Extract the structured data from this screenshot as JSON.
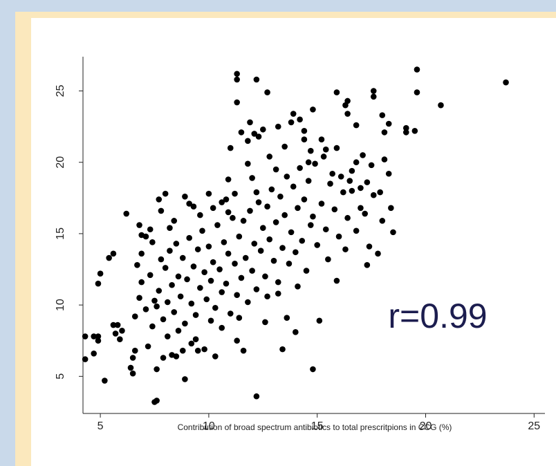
{
  "colors": {
    "background": "#c9d9ea",
    "frame": "#fbe8bd",
    "panel": "#ffffff",
    "points": "#000000",
    "annotation": "#1c1d4f"
  },
  "chart_data": {
    "type": "scatter",
    "title": "",
    "xlabel": "Contribution of broad spectrum antibiotics to total prescritpions in CCG (%)",
    "ylabel": "",
    "xlim": [
      4.2,
      25.5
    ],
    "ylim": [
      2.4,
      27.4
    ],
    "x_ticks": [
      5,
      10,
      15,
      20,
      25
    ],
    "y_ticks": [
      5,
      10,
      15,
      20,
      25
    ],
    "x_tick_labels": [
      "5",
      "10",
      "15",
      "20",
      "25"
    ],
    "y_tick_labels": [
      "5",
      "10",
      "15",
      "20",
      "25"
    ],
    "grid": false,
    "annotation": "r=0.99",
    "points": [
      [
        4.3,
        7.8
      ],
      [
        4.3,
        6.2
      ],
      [
        4.7,
        7.8
      ],
      [
        4.7,
        6.6
      ],
      [
        4.9,
        7.5
      ],
      [
        4.9,
        7.8
      ],
      [
        4.9,
        11.5
      ],
      [
        5.0,
        12.2
      ],
      [
        5.2,
        4.7
      ],
      [
        5.4,
        13.3
      ],
      [
        5.6,
        13.6
      ],
      [
        5.6,
        8.6
      ],
      [
        5.8,
        8.6
      ],
      [
        5.7,
        8.0
      ],
      [
        5.9,
        7.6
      ],
      [
        6.0,
        8.2
      ],
      [
        6.2,
        16.4
      ],
      [
        6.4,
        5.6
      ],
      [
        6.5,
        5.2
      ],
      [
        6.5,
        6.3
      ],
      [
        6.6,
        6.8
      ],
      [
        6.8,
        15.6
      ],
      [
        6.9,
        13.6
      ],
      [
        7.1,
        14.8
      ],
      [
        7.3,
        15.3
      ],
      [
        7.4,
        14.4
      ],
      [
        7.5,
        3.2
      ],
      [
        7.6,
        3.3
      ],
      [
        7.6,
        5.5
      ],
      [
        7.7,
        17.4
      ],
      [
        7.8,
        16.6
      ],
      [
        7.9,
        6.3
      ],
      [
        8.0,
        17.8
      ],
      [
        8.2,
        15.4
      ],
      [
        8.3,
        6.5
      ],
      [
        8.5,
        6.4
      ],
      [
        8.8,
        6.8
      ],
      [
        8.9,
        17.6
      ],
      [
        8.9,
        4.8
      ],
      [
        9.1,
        17.1
      ],
      [
        9.3,
        16.9
      ],
      [
        9.5,
        6.8
      ],
      [
        9.8,
        6.9
      ],
      [
        10.0,
        17.8
      ],
      [
        10.2,
        16.8
      ],
      [
        10.3,
        6.4
      ],
      [
        10.6,
        17.2
      ],
      [
        10.9,
        16.5
      ],
      [
        11.0,
        21.0
      ],
      [
        11.2,
        17.8
      ],
      [
        11.3,
        26.2
      ],
      [
        11.3,
        24.2
      ],
      [
        11.3,
        25.8
      ],
      [
        11.5,
        22.1
      ],
      [
        11.6,
        6.8
      ],
      [
        11.8,
        21.5
      ],
      [
        11.9,
        22.8
      ],
      [
        12.1,
        22.0
      ],
      [
        12.2,
        25.8
      ],
      [
        12.2,
        3.6
      ],
      [
        12.3,
        21.8
      ],
      [
        12.5,
        22.3
      ],
      [
        12.7,
        24.9
      ],
      [
        13.2,
        22.5
      ],
      [
        13.4,
        6.9
      ],
      [
        13.6,
        9.1
      ],
      [
        13.8,
        22.8
      ],
      [
        13.9,
        23.4
      ],
      [
        14.0,
        8.1
      ],
      [
        14.2,
        23.0
      ],
      [
        14.4,
        22.2
      ],
      [
        14.6,
        20.0
      ],
      [
        14.8,
        5.5
      ],
      [
        14.8,
        23.7
      ],
      [
        15.1,
        8.9
      ],
      [
        15.2,
        21.6
      ],
      [
        15.4,
        20.9
      ],
      [
        15.9,
        11.7
      ],
      [
        15.9,
        24.9
      ],
      [
        16.1,
        19.0
      ],
      [
        16.3,
        24.0
      ],
      [
        16.4,
        23.4
      ],
      [
        16.4,
        24.3
      ],
      [
        16.6,
        18.0
      ],
      [
        16.8,
        20.0
      ],
      [
        16.8,
        22.6
      ],
      [
        17.0,
        16.8
      ],
      [
        17.3,
        18.6
      ],
      [
        17.5,
        19.8
      ],
      [
        17.6,
        24.6
      ],
      [
        17.6,
        25.0
      ],
      [
        17.9,
        17.9
      ],
      [
        18.0,
        23.3
      ],
      [
        18.1,
        22.1
      ],
      [
        18.1,
        20.2
      ],
      [
        18.3,
        22.7
      ],
      [
        18.3,
        19.2
      ],
      [
        18.4,
        16.8
      ],
      [
        18.5,
        15.1
      ],
      [
        19.1,
        22.4
      ],
      [
        19.1,
        22.1
      ],
      [
        19.5,
        22.2
      ],
      [
        19.6,
        24.9
      ],
      [
        19.6,
        26.5
      ],
      [
        20.7,
        24.0
      ],
      [
        23.7,
        25.6
      ],
      [
        6.9,
        11.6
      ],
      [
        7.1,
        9.7
      ],
      [
        7.3,
        12.1
      ],
      [
        7.4,
        8.5
      ],
      [
        7.5,
        10.3
      ],
      [
        7.7,
        11.0
      ],
      [
        7.8,
        13.2
      ],
      [
        7.9,
        9.0
      ],
      [
        8.0,
        12.6
      ],
      [
        8.1,
        10.2
      ],
      [
        8.2,
        13.8
      ],
      [
        8.3,
        11.4
      ],
      [
        8.4,
        9.5
      ],
      [
        8.5,
        14.3
      ],
      [
        8.6,
        12.0
      ],
      [
        8.7,
        10.6
      ],
      [
        8.8,
        13.3
      ],
      [
        8.9,
        8.7
      ],
      [
        9.0,
        11.8
      ],
      [
        9.1,
        14.7
      ],
      [
        9.2,
        10.1
      ],
      [
        9.3,
        12.7
      ],
      [
        9.4,
        9.3
      ],
      [
        9.5,
        13.9
      ],
      [
        9.6,
        11.2
      ],
      [
        9.7,
        15.2
      ],
      [
        9.8,
        12.3
      ],
      [
        9.9,
        10.4
      ],
      [
        10.0,
        14.1
      ],
      [
        10.1,
        11.7
      ],
      [
        10.2,
        13.0
      ],
      [
        10.3,
        9.8
      ],
      [
        10.4,
        15.6
      ],
      [
        10.5,
        12.5
      ],
      [
        10.6,
        10.9
      ],
      [
        10.7,
        14.4
      ],
      [
        10.8,
        11.5
      ],
      [
        10.9,
        13.6
      ],
      [
        11.0,
        9.4
      ],
      [
        11.1,
        16.1
      ],
      [
        11.2,
        12.9
      ],
      [
        11.3,
        10.7
      ],
      [
        11.4,
        14.8
      ],
      [
        11.5,
        11.9
      ],
      [
        11.6,
        15.9
      ],
      [
        11.7,
        13.3
      ],
      [
        11.8,
        10.2
      ],
      [
        11.9,
        16.6
      ],
      [
        12.0,
        12.4
      ],
      [
        12.1,
        14.3
      ],
      [
        12.2,
        11.1
      ],
      [
        12.3,
        17.2
      ],
      [
        12.4,
        13.8
      ],
      [
        12.5,
        15.4
      ],
      [
        12.6,
        12.0
      ],
      [
        12.7,
        16.9
      ],
      [
        12.8,
        14.6
      ],
      [
        12.9,
        18.1
      ],
      [
        13.0,
        13.1
      ],
      [
        13.1,
        15.8
      ],
      [
        13.2,
        11.6
      ],
      [
        13.3,
        17.6
      ],
      [
        13.4,
        14.0
      ],
      [
        13.5,
        16.3
      ],
      [
        13.6,
        19.0
      ],
      [
        13.7,
        12.9
      ],
      [
        13.8,
        15.1
      ],
      [
        13.9,
        18.3
      ],
      [
        14.0,
        13.7
      ],
      [
        14.1,
        16.8
      ],
      [
        14.2,
        19.6
      ],
      [
        14.3,
        14.5
      ],
      [
        14.4,
        17.4
      ],
      [
        14.5,
        12.4
      ],
      [
        14.6,
        18.7
      ],
      [
        14.7,
        15.6
      ],
      [
        14.8,
        16.2
      ],
      [
        14.9,
        19.9
      ],
      [
        15.0,
        14.2
      ],
      [
        15.2,
        17.1
      ],
      [
        15.4,
        15.3
      ],
      [
        15.6,
        18.5
      ],
      [
        15.8,
        16.7
      ],
      [
        16.0,
        14.8
      ],
      [
        16.2,
        17.9
      ],
      [
        16.4,
        16.1
      ],
      [
        16.6,
        19.4
      ],
      [
        16.8,
        15.2
      ],
      [
        17.0,
        18.2
      ],
      [
        17.2,
        16.4
      ],
      [
        17.4,
        14.1
      ],
      [
        17.6,
        17.7
      ],
      [
        17.8,
        13.6
      ],
      [
        18.0,
        15.9
      ],
      [
        13.2,
        10.8
      ],
      [
        14.1,
        11.3
      ],
      [
        12.7,
        10.6
      ],
      [
        11.4,
        9.1
      ],
      [
        10.6,
        8.4
      ],
      [
        9.4,
        7.6
      ],
      [
        8.6,
        8.2
      ],
      [
        7.6,
        9.9
      ],
      [
        6.8,
        10.5
      ],
      [
        6.6,
        9.2
      ],
      [
        6.7,
        12.8
      ],
      [
        6.9,
        14.9
      ],
      [
        7.2,
        7.1
      ],
      [
        8.4,
        15.9
      ],
      [
        9.6,
        16.3
      ],
      [
        10.8,
        17.4
      ],
      [
        12.0,
        18.9
      ],
      [
        12.8,
        20.4
      ],
      [
        13.5,
        21.1
      ],
      [
        14.4,
        21.6
      ],
      [
        15.3,
        20.4
      ],
      [
        15.7,
        19.2
      ],
      [
        16.5,
        18.7
      ],
      [
        17.1,
        20.5
      ],
      [
        11.8,
        19.9
      ],
      [
        10.9,
        18.8
      ],
      [
        12.2,
        17.9
      ],
      [
        13.1,
        19.5
      ],
      [
        14.7,
        20.8
      ],
      [
        15.9,
        21.0
      ],
      [
        12.6,
        8.8
      ],
      [
        11.3,
        7.5
      ],
      [
        10.1,
        8.9
      ],
      [
        9.2,
        7.3
      ],
      [
        8.1,
        7.8
      ],
      [
        15.5,
        13.2
      ],
      [
        16.3,
        13.9
      ],
      [
        17.3,
        12.8
      ]
    ]
  }
}
